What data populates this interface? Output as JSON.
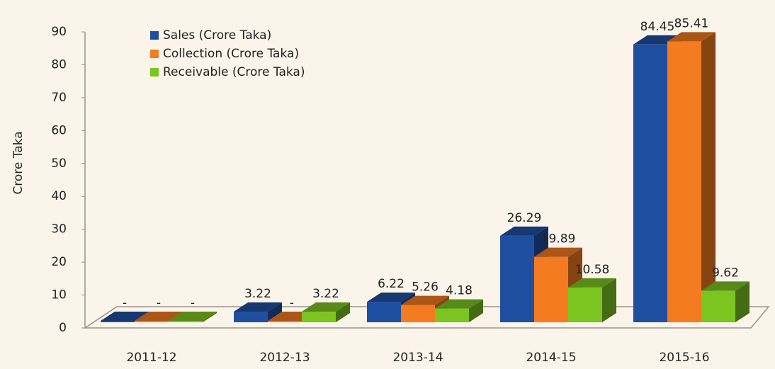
{
  "chart_data": {
    "type": "bar3d",
    "y_label": "Crore Taka",
    "categories": [
      "2011-12",
      "2012-13",
      "2013-14",
      "2014-15",
      "2015-16"
    ],
    "series": [
      {
        "name": "Sales (Crore Taka)",
        "color": "#1f4fa0",
        "values": [
          0,
          3.22,
          6.22,
          26.29,
          84.45
        ],
        "value_labels": [
          "-",
          "3.22",
          "6.22",
          "26.29",
          "84.45"
        ]
      },
      {
        "name": "Collection (Crore Taka)",
        "color": "#f47b20",
        "values": [
          0,
          0,
          5.26,
          19.89,
          85.41
        ],
        "value_labels": [
          "-",
          "-",
          "5.26",
          "19.89",
          "85.41"
        ]
      },
      {
        "name": "Receivable (Crore Taka)",
        "color": "#7cc520",
        "values": [
          0,
          3.22,
          4.18,
          10.58,
          9.62
        ],
        "value_labels": [
          "-",
          "3.22",
          "4.18",
          "10.58",
          "9.62"
        ]
      }
    ],
    "ylim": [
      0,
      90
    ],
    "yticks": [
      0,
      10,
      20,
      30,
      40,
      50,
      60,
      70,
      80,
      90
    ],
    "grid": false,
    "legend": "upper left"
  }
}
